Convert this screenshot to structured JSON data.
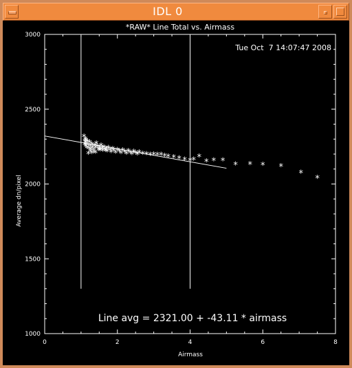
{
  "window": {
    "title": "IDL 0",
    "icons": [
      "window-menu-icon",
      "minimize-icon",
      "maximize-icon"
    ]
  },
  "chart_data": {
    "type": "scatter",
    "title": "*RAW* Line Total vs. Airmass",
    "timestamp": "Tue Oct  7 14:07:47 2008",
    "xlabel": "Airmass",
    "ylabel": "Average dn/pixel",
    "xlim": [
      0,
      8
    ],
    "ylim": [
      1000,
      3000
    ],
    "x_ticks": [
      "0",
      "2",
      "4",
      "6",
      "8"
    ],
    "y_ticks": [
      "1000",
      "1500",
      "2000",
      "2500",
      "3000"
    ],
    "annotation": "Line avg = 2321.00 + -43.11 * airmass",
    "fit_line": {
      "intercept": 2321.0,
      "slope": -43.11,
      "x_range": [
        0,
        5
      ]
    },
    "vertical_markers": [
      1.0,
      4.0
    ],
    "vertical_marker_range": [
      1300,
      2990
    ],
    "series": [
      {
        "marker": "*",
        "x": [
          1.08,
          1.1,
          1.1,
          1.12,
          1.12,
          1.13,
          1.14,
          1.15,
          1.16,
          1.18,
          1.2,
          1.22,
          1.24,
          1.25,
          1.27,
          1.3,
          1.32,
          1.35,
          1.38,
          1.4,
          1.42,
          1.45,
          1.48,
          1.5,
          1.53,
          1.55,
          1.58,
          1.6,
          1.63,
          1.65,
          1.68,
          1.7,
          1.72,
          1.75,
          1.8,
          1.83,
          1.87,
          1.9,
          1.95,
          2.0,
          2.05,
          2.1,
          2.15,
          2.2,
          2.25,
          2.3,
          2.35,
          2.4,
          2.45,
          2.5,
          2.55,
          2.6,
          2.7,
          2.8,
          2.9,
          3.0,
          3.1,
          3.2,
          3.3,
          3.4,
          3.55,
          3.7,
          3.85,
          4.0,
          4.1,
          4.25,
          4.45,
          4.65,
          4.9,
          5.25,
          5.65,
          6.0,
          6.5,
          7.05,
          7.5,
          1.2,
          1.3,
          1.4,
          1.5,
          1.25,
          1.35
        ],
        "y": [
          2315,
          2285,
          2260,
          2300,
          2275,
          2250,
          2290,
          2265,
          2240,
          2280,
          2258,
          2235,
          2275,
          2250,
          2230,
          2262,
          2242,
          2225,
          2255,
          2238,
          2270,
          2248,
          2226,
          2240,
          2222,
          2255,
          2235,
          2220,
          2244,
          2228,
          2218,
          2232,
          2215,
          2238,
          2226,
          2212,
          2232,
          2220,
          2208,
          2225,
          2215,
          2205,
          2222,
          2212,
          2200,
          2218,
          2208,
          2198,
          2214,
          2204,
          2196,
          2210,
          2200,
          2198,
          2194,
          2196,
          2192,
          2194,
          2186,
          2182,
          2176,
          2170,
          2162,
          2156,
          2160,
          2182,
          2150,
          2156,
          2156,
          2128,
          2130,
          2126,
          2118,
          2074,
          2040,
          2200,
          2205,
          2208,
          2230,
          2215,
          2212
        ]
      }
    ]
  }
}
